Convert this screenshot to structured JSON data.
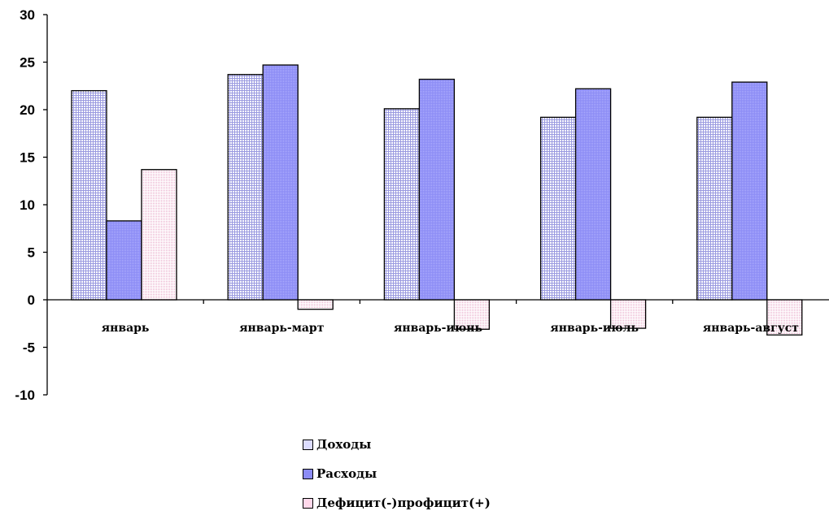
{
  "chart_data": {
    "type": "bar",
    "categories": [
      "январь",
      "январь-март",
      "январь-июнь",
      "январь-июль",
      "январь-август"
    ],
    "series": [
      {
        "name": "Доходы",
        "values": [
          22.0,
          23.7,
          20.1,
          19.2,
          19.2
        ],
        "color": "#e8e8ff",
        "pattern": "grid"
      },
      {
        "name": "Расходы",
        "values": [
          8.3,
          24.7,
          23.2,
          22.2,
          22.9
        ],
        "color": "#9999ff",
        "pattern": "fine"
      },
      {
        "name": "Дефицит(-)профицит(+)",
        "values": [
          13.7,
          -1.0,
          -3.1,
          -3.0,
          -3.7
        ],
        "color": "#ffe0f0",
        "pattern": "fine-pink"
      }
    ],
    "ylim": [
      -10,
      30
    ],
    "yticks": [
      30,
      25,
      20,
      15,
      10,
      5,
      0,
      -5,
      -10
    ],
    "grid": false,
    "legend_position": "bottom"
  }
}
